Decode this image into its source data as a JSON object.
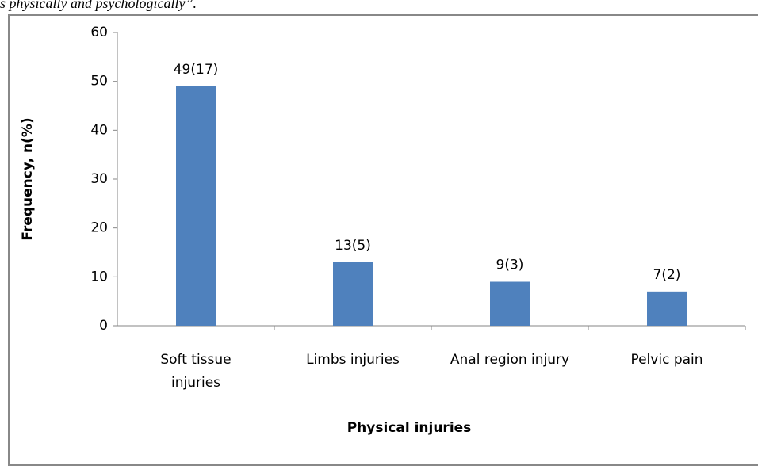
{
  "caption": "s physically and psychologically”.",
  "chart_data": {
    "type": "bar",
    "categories": [
      "Soft tissue injuries",
      "Limbs injuries",
      "Anal region injury",
      "Pelvic pain"
    ],
    "values": [
      49,
      13,
      9,
      7
    ],
    "value_labels": [
      "49(17)",
      "13(5)",
      "9(3)",
      "7(2)"
    ],
    "color": "#4f81bd",
    "ylim": [
      0,
      60
    ],
    "yticks": [
      0,
      10,
      20,
      30,
      40,
      50,
      60
    ],
    "ylabel": "Frequency, n(%)",
    "xlabel": "Physical injuries",
    "grid": false
  }
}
